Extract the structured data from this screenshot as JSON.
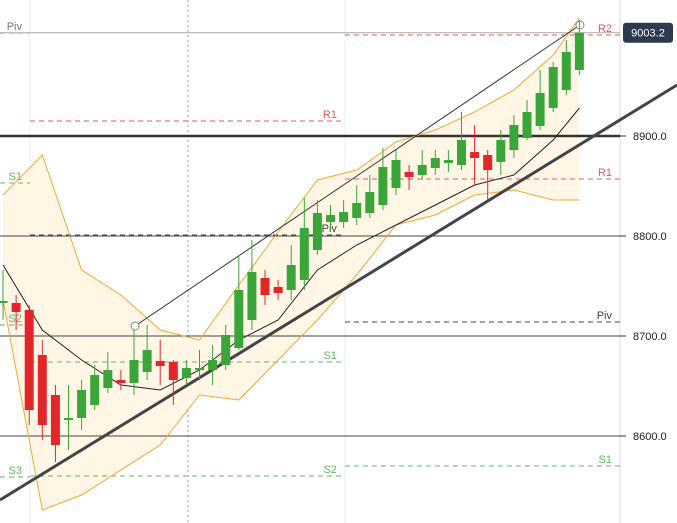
{
  "chart_data": {
    "type": "candlestick",
    "xlim": [
      -0.23,
      51.45
    ],
    "ylim": [
      8513,
      9036
    ],
    "yticks": [
      {
        "value": 8600,
        "label": "8600.0"
      },
      {
        "value": 8700,
        "label": "8700.0"
      },
      {
        "value": 8800,
        "label": "8800.0"
      },
      {
        "value": 8900,
        "label": "8900.0"
      }
    ],
    "up_color": "#3aa63a",
    "down_color": "#e3262a",
    "series": {
      "open": [
        8733,
        8733,
        8726,
        8681,
        8641,
        8616,
        8618,
        8631,
        8648,
        8656,
        8653,
        8664,
        8675,
        8674,
        8658,
        8666,
        8666,
        8671,
        8688,
        8716,
        8758,
        8749,
        8746,
        8756,
        8786,
        8814,
        8814,
        8818,
        8823,
        8831,
        8848,
        8864,
        8861,
        8868,
        8873,
        8871,
        8884,
        8881,
        8874,
        8886,
        8898,
        8910,
        8928,
        8946,
        8966
      ],
      "high": [
        8766,
        8741,
        8731,
        8696,
        8651,
        8651,
        8656,
        8671,
        8684,
        8666,
        8706,
        8711,
        8696,
        8676,
        8676,
        8686,
        8691,
        8711,
        8781,
        8796,
        8766,
        8756,
        8791,
        8838,
        8836,
        8831,
        8836,
        8851,
        8861,
        8888,
        8886,
        8871,
        8886,
        8886,
        8886,
        8924,
        8911,
        8886,
        8906,
        8921,
        8936,
        8966,
        8974,
        8996,
        9016
      ],
      "low": [
        8716,
        8706,
        8611,
        8596,
        8574,
        8586,
        8606,
        8626,
        8643,
        8646,
        8641,
        8656,
        8651,
        8631,
        8651,
        8656,
        8651,
        8666,
        8686,
        8706,
        8731,
        8736,
        8736,
        8746,
        8781,
        8806,
        8808,
        8811,
        8818,
        8826,
        8841,
        8846,
        8856,
        8861,
        8864,
        8866,
        8851,
        8836,
        8861,
        8878,
        8896,
        8906,
        8924,
        8941,
        8961
      ],
      "close": [
        8735,
        8724,
        8626,
        8611,
        8591,
        8618,
        8646,
        8661,
        8666,
        8653,
        8676,
        8686,
        8670,
        8656,
        8668,
        8668,
        8676,
        8701,
        8746,
        8764,
        8741,
        8743,
        8771,
        8808,
        8823,
        8821,
        8824,
        8833,
        8844,
        8869,
        8876,
        8859,
        8871,
        8878,
        8876,
        8896,
        8878,
        8866,
        8896,
        8911,
        8924,
        8943,
        8969,
        8984,
        9003.2
      ]
    },
    "bands": {
      "x": [
        0,
        3,
        6,
        9,
        12,
        15,
        18,
        21,
        24,
        27,
        30,
        33,
        36,
        39,
        42,
        44
      ],
      "upper": [
        8841,
        8881,
        8766,
        8741,
        8706,
        8696,
        8751,
        8804,
        8856,
        8866,
        8894,
        8906,
        8924,
        8946,
        8981,
        9018
      ],
      "middle": [
        8771,
        8706,
        8676,
        8651,
        8646,
        8666,
        8696,
        8716,
        8766,
        8791,
        8811,
        8831,
        8851,
        8861,
        8896,
        8928
      ],
      "lower": [
        8736,
        8526,
        8541,
        8566,
        8591,
        8641,
        8636,
        8676,
        8716,
        8761,
        8811,
        8821,
        8841,
        8846,
        8836,
        8836
      ],
      "band_color": "#f0a830",
      "middle_color": "#222222",
      "fill": "#fff6e6"
    },
    "trendlines": [
      {
        "x": [
          -0.23,
          51.45
        ],
        "values": [
          8536,
          8951
        ],
        "color": "#444444",
        "width": 3
      },
      {
        "x": [
          10.08,
          44.04
        ],
        "values": [
          8710,
          9011
        ],
        "color": "#333333",
        "width": 1
      }
    ],
    "pivots": [
      {
        "x": [
          -0.23,
          2.06
        ],
        "levels": [
          {
            "label": "Piv",
            "value": 9003,
            "color": "#777777"
          },
          {
            "label": "S1",
            "value": 8853,
            "color": "#5cb85c"
          },
          {
            "label": "S2",
            "value": 8711,
            "color": "#5cb85c"
          },
          {
            "label": "S3",
            "value": 8559,
            "color": "#5cb85c"
          }
        ]
      },
      {
        "x": [
          2.06,
          26.1
        ],
        "levels": [
          {
            "label": "R1",
            "value": 8915,
            "color": "#e05a5a"
          },
          {
            "label": "Piv",
            "value": 8801,
            "color": "#444444"
          },
          {
            "label": "S1",
            "value": 8674,
            "color": "#5cb85c"
          },
          {
            "label": "S2",
            "value": 8560,
            "color": "#5cb85c"
          }
        ]
      },
      {
        "x": [
          26.1,
          47.9
        ],
        "levels": [
          {
            "label": "R2",
            "value": 9001,
            "color": "#e05a5a"
          },
          {
            "label": "R1",
            "value": 8857,
            "color": "#e05a5a"
          },
          {
            "label": "Piv",
            "value": 8714,
            "color": "#444444"
          },
          {
            "label": "S1",
            "value": 8570,
            "color": "#5cb85c"
          }
        ]
      }
    ]
  }
}
